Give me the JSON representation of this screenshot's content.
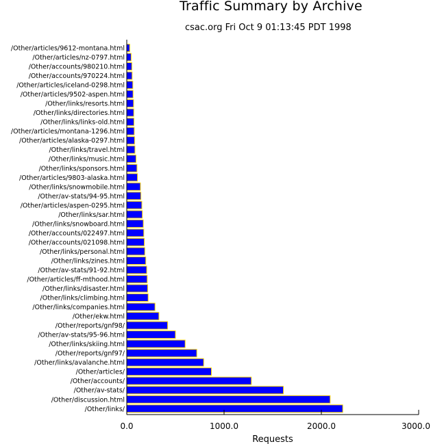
{
  "chart_data": {
    "type": "bar",
    "orientation": "horizontal",
    "title": "Traffic Summary by Archive",
    "subtitle": "csac.org Fri Oct  9 01:13:45 PDT 1998",
    "xlabel": "Requests",
    "ylabel": "",
    "xlim": [
      0,
      3000
    ],
    "xticks": [
      "0.0",
      "1000.0",
      "2000.0",
      "3000.0"
    ],
    "xtick_values": [
      0,
      1000,
      2000,
      3000
    ],
    "bar_color": "#0000ff",
    "bar_edge_color": "#ffd700",
    "grid": false,
    "categories": [
      "/Other/articles/9612-montana.html",
      "/Other/articles/nz-0797.html",
      "/Other/accounts/980210.html",
      "/Other/accounts/970224.html",
      "/Other/articles/iceland-0298.html",
      "/Other/articles/9502-aspen.html",
      "/Other/links/resorts.html",
      "/Other/links/directories.html",
      "/Other/links/links-old.html",
      "/Other/articles/montana-1296.html",
      "/Other/articles/alaska-0297.html",
      "/Other/links/travel.html",
      "/Other/links/music.html",
      "/Other/links/sponsors.html",
      "/Other/articles/9803-alaska.html",
      "/Other/links/snowmobile.html",
      "/Other/av-stats/94-95.html",
      "/Other/articles/aspen-0295.html",
      "/Other/links/sar.html",
      "/Other/links/snowboard.html",
      "/Other/accounts/022497.html",
      "/Other/accounts/021098.html",
      "/Other/links/personal.html",
      "/Other/links/zines.html",
      "/Other/av-stats/91-92.html",
      "/Other/articles/ff-mthood.html",
      "/Other/links/disaster.html",
      "/Other/links/climbing.html",
      "/Other/links/companies.html",
      "/Other/ekw.html",
      "/Other/reports/gnf98/",
      "/Other/av-stats/95-96.html",
      "/Other/links/skiing.html",
      "/Other/reports/gnf97/",
      "/Other/links/avalanche.html",
      "/Other/articles/",
      "/Other/accounts/",
      "/Other/av-stats/",
      "/Other/discussion.html",
      "/Other/links/"
    ],
    "values": [
      30,
      45,
      52,
      55,
      62,
      65,
      70,
      72,
      74,
      77,
      80,
      84,
      95,
      105,
      110,
      140,
      145,
      155,
      160,
      170,
      175,
      180,
      185,
      195,
      205,
      210,
      215,
      220,
      290,
      330,
      420,
      500,
      600,
      720,
      790,
      870,
      1280,
      1610,
      2090,
      2220
    ]
  }
}
